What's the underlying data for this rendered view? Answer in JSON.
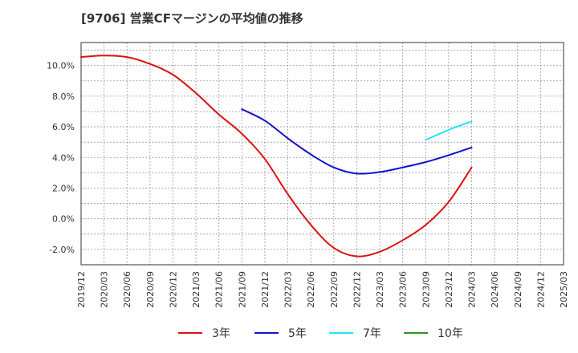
{
  "chart_data": {
    "type": "line",
    "title": "[9706]  営業CFマージンの平均値の推移",
    "xlabel": "",
    "ylabel": "",
    "y_unit": "%",
    "ylim": [
      -3.0,
      11.5
    ],
    "yticks": [
      -2.0,
      0.0,
      2.0,
      4.0,
      6.0,
      8.0,
      10.0
    ],
    "ytick_labels": [
      "-2.0%",
      "0.0%",
      "2.0%",
      "4.0%",
      "6.0%",
      "8.0%",
      "10.0%"
    ],
    "x_categories": [
      "2019/12",
      "2020/03",
      "2020/06",
      "2020/09",
      "2020/12",
      "2021/03",
      "2021/06",
      "2021/09",
      "2021/12",
      "2022/03",
      "2022/06",
      "2022/09",
      "2022/12",
      "2023/03",
      "2023/06",
      "2023/09",
      "2023/12",
      "2024/03",
      "2024/06",
      "2024/09",
      "2024/12",
      "2025/03"
    ],
    "grid": true,
    "legend_position": "bottom",
    "series": [
      {
        "name": "3年",
        "color": "#dd1111",
        "x": [
          "2019/12",
          "2020/03",
          "2020/06",
          "2020/09",
          "2020/12",
          "2021/03",
          "2021/06",
          "2021/09",
          "2021/12",
          "2022/03",
          "2022/06",
          "2022/09",
          "2022/12",
          "2023/03",
          "2023/06",
          "2023/09",
          "2023/12",
          "2024/03"
        ],
        "values": [
          10.55,
          10.65,
          10.55,
          10.1,
          9.4,
          8.2,
          6.8,
          5.55,
          3.9,
          1.6,
          -0.4,
          -1.9,
          -2.45,
          -2.15,
          -1.4,
          -0.4,
          1.1,
          3.35
        ]
      },
      {
        "name": "5年",
        "color": "#1111cc",
        "x": [
          "2021/09",
          "2021/12",
          "2022/03",
          "2022/06",
          "2022/09",
          "2022/12",
          "2023/03",
          "2023/06",
          "2023/09",
          "2023/12",
          "2024/03"
        ],
        "values": [
          7.15,
          6.4,
          5.25,
          4.2,
          3.35,
          2.95,
          3.05,
          3.35,
          3.7,
          4.15,
          4.65
        ]
      },
      {
        "name": "7年",
        "color": "#22e6f0",
        "x": [
          "2023/09",
          "2023/12",
          "2024/03"
        ],
        "values": [
          5.15,
          5.8,
          6.35
        ]
      },
      {
        "name": "10年",
        "color": "#229922",
        "x": [],
        "values": []
      }
    ]
  }
}
